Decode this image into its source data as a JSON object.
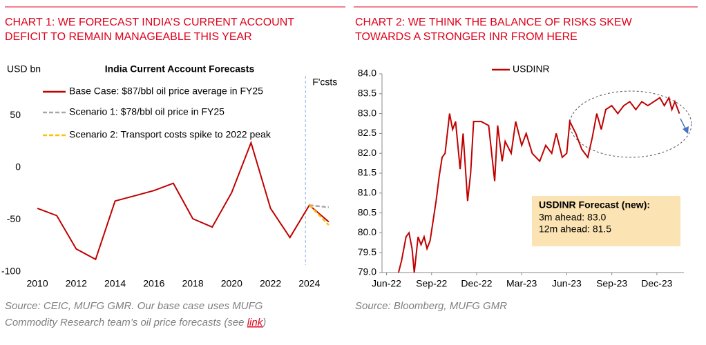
{
  "chart_data": [
    {
      "type": "line",
      "heading": [
        "CHART 1: WE FORECAST INDIA’S CURRENT ACCOUNT",
        "DEFICIT TO REMAIN MANAGEABLE THIS YEAR"
      ],
      "title": "India Current Account Forecasts",
      "ylabel": "USD bn",
      "annotation": {
        "text": "F'csts",
        "x": 2023.8
      },
      "x": [
        2010,
        2011,
        2012,
        2013,
        2014,
        2015,
        2016,
        2017,
        2018,
        2019,
        2020,
        2021,
        2022,
        2023,
        2024,
        2025
      ],
      "series": [
        {
          "name": "Base Case: $87/bbl oil price average in FY25",
          "color": "#c00000",
          "dash": false,
          "values": [
            -39,
            -46,
            -78,
            -88,
            -32,
            -27,
            -22,
            -15,
            -49,
            -57,
            -24,
            24,
            -39,
            -67,
            -36,
            -52
          ]
        },
        {
          "name": "Scenario 1: $78/bbl oil price in FY25",
          "color": "#a6a6a6",
          "dash": true,
          "values": [
            null,
            null,
            null,
            null,
            null,
            null,
            null,
            null,
            null,
            null,
            null,
            null,
            null,
            null,
            -36,
            -38
          ]
        },
        {
          "name": "Scenario 2: Transport costs spike to 2022 peak",
          "color": "#ffc000",
          "dash": true,
          "values": [
            null,
            null,
            null,
            null,
            null,
            null,
            null,
            null,
            null,
            null,
            null,
            null,
            null,
            null,
            -36,
            -55
          ]
        }
      ],
      "xlim": [
        2009.5,
        2025.5
      ],
      "xticks": [
        2010,
        2012,
        2014,
        2016,
        2018,
        2020,
        2022,
        2024
      ],
      "ylim": [
        -100,
        100
      ],
      "yticks": [
        -100,
        -50,
        0,
        50
      ],
      "source": [
        "Source: CEIC, MUFG GMR.  Our base case uses MUFG",
        "Commodity Research team’s oil price forecasts (see "
      ],
      "source_link": "link",
      "source_end": ")"
    },
    {
      "type": "line",
      "heading": [
        "CHART 2: WE THINK THE BALANCE OF RISKS SKEW",
        "TOWARDS A STRONGER INR FROM HERE"
      ],
      "x": [
        0.8,
        1.0,
        1.3,
        1.5,
        1.7,
        1.85,
        2.1,
        2.3,
        2.5,
        2.7,
        2.9,
        3.3,
        3.5,
        3.7,
        3.9,
        4.2,
        4.4,
        4.6,
        4.9,
        5.1,
        5.4,
        5.6,
        5.8,
        6.3,
        6.8,
        7.2,
        7.4,
        7.7,
        7.9,
        8.3,
        8.6,
        9.0,
        9.3,
        9.7,
        10.2,
        10.6,
        11.0,
        11.3,
        11.7,
        12.0,
        12.2,
        12.6,
        13.0,
        13.4,
        13.7,
        14.0,
        14.3,
        14.6,
        15.0,
        15.4,
        15.8,
        16.2,
        16.6,
        17.0,
        17.4,
        17.8,
        18.2,
        18.5,
        18.8,
        19.0,
        19.2,
        19.5
      ],
      "series": [
        {
          "name": "USDINR",
          "color": "#c00000",
          "values": [
            79.0,
            79.3,
            79.9,
            80.0,
            79.6,
            79.0,
            79.9,
            79.7,
            79.9,
            79.6,
            79.8,
            80.8,
            81.4,
            81.9,
            82.0,
            83.0,
            82.6,
            82.8,
            81.6,
            82.5,
            80.8,
            81.5,
            82.8,
            82.8,
            82.7,
            81.3,
            82.7,
            81.8,
            82.3,
            82.0,
            82.8,
            82.2,
            82.5,
            82.0,
            81.8,
            82.2,
            82.0,
            82.5,
            81.9,
            82.0,
            82.8,
            82.5,
            82.1,
            81.9,
            82.4,
            83.0,
            82.6,
            83.1,
            83.2,
            83.0,
            83.2,
            83.3,
            83.1,
            83.3,
            83.2,
            83.3,
            83.4,
            83.2,
            83.4,
            83.1,
            83.3,
            83.0
          ]
        }
      ],
      "xlim": [
        -0.3,
        19.8
      ],
      "xticks": [
        {
          "value": 0,
          "label": "Jun-22"
        },
        {
          "value": 3,
          "label": "Sep-22"
        },
        {
          "value": 6,
          "label": "Dec-22"
        },
        {
          "value": 9,
          "label": "Mar-23"
        },
        {
          "value": 12,
          "label": "Jun-23"
        },
        {
          "value": 15,
          "label": "Sep-23"
        },
        {
          "value": 18,
          "label": "Dec-23"
        }
      ],
      "ylim": [
        79,
        84
      ],
      "yticks": [
        {
          "value": 79,
          "label": "79.0"
        },
        {
          "value": 79.5,
          "label": "79.5"
        },
        {
          "value": 80,
          "label": "80.0"
        },
        {
          "value": 80.5,
          "label": "80.5"
        },
        {
          "value": 81,
          "label": "81.0"
        },
        {
          "value": 81.5,
          "label": "81.5"
        },
        {
          "value": 82,
          "label": "82.0"
        },
        {
          "value": 82.5,
          "label": "82.5"
        },
        {
          "value": 83,
          "label": "83.0"
        },
        {
          "value": 83.5,
          "label": "83.5"
        },
        {
          "value": 84,
          "label": "84.0"
        }
      ],
      "box": {
        "title": "USDINR Forecast (new):",
        "lines": [
          "3m ahead: 83.0",
          "12m ahead: 81.5"
        ]
      },
      "source": [
        "Source: Bloomberg, MUFG GMR"
      ]
    }
  ]
}
